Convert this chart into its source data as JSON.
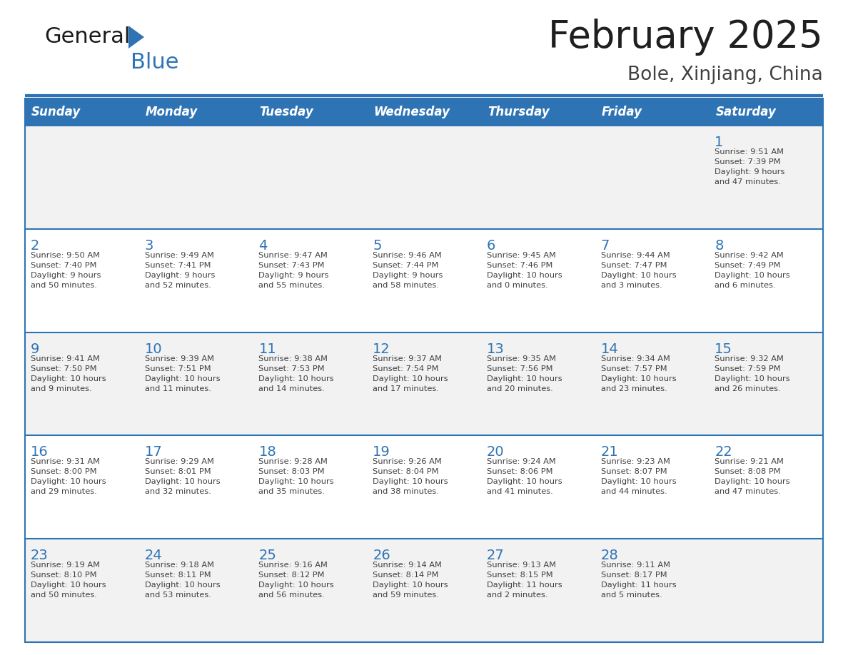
{
  "title": "February 2025",
  "subtitle": "Bole, Xinjiang, China",
  "header_bg_color": "#2E74B5",
  "header_text_color": "#FFFFFF",
  "row_bg_color_odd": "#F2F2F2",
  "row_bg_color_even": "#FFFFFF",
  "border_color": "#2E74B5",
  "day_headers": [
    "Sunday",
    "Monday",
    "Tuesday",
    "Wednesday",
    "Thursday",
    "Friday",
    "Saturday"
  ],
  "title_color": "#1F1F1F",
  "subtitle_color": "#404040",
  "cell_text_color": "#404040",
  "day_num_color": "#2E74B5",
  "logo_general_color": "#1A1A1A",
  "logo_blue_color": "#2E74B5",
  "logo_triangle_color": "#2E74B5",
  "calendar_data": [
    [
      {
        "day": null,
        "info": null
      },
      {
        "day": null,
        "info": null
      },
      {
        "day": null,
        "info": null
      },
      {
        "day": null,
        "info": null
      },
      {
        "day": null,
        "info": null
      },
      {
        "day": null,
        "info": null
      },
      {
        "day": 1,
        "info": "Sunrise: 9:51 AM\nSunset: 7:39 PM\nDaylight: 9 hours\nand 47 minutes."
      }
    ],
    [
      {
        "day": 2,
        "info": "Sunrise: 9:50 AM\nSunset: 7:40 PM\nDaylight: 9 hours\nand 50 minutes."
      },
      {
        "day": 3,
        "info": "Sunrise: 9:49 AM\nSunset: 7:41 PM\nDaylight: 9 hours\nand 52 minutes."
      },
      {
        "day": 4,
        "info": "Sunrise: 9:47 AM\nSunset: 7:43 PM\nDaylight: 9 hours\nand 55 minutes."
      },
      {
        "day": 5,
        "info": "Sunrise: 9:46 AM\nSunset: 7:44 PM\nDaylight: 9 hours\nand 58 minutes."
      },
      {
        "day": 6,
        "info": "Sunrise: 9:45 AM\nSunset: 7:46 PM\nDaylight: 10 hours\nand 0 minutes."
      },
      {
        "day": 7,
        "info": "Sunrise: 9:44 AM\nSunset: 7:47 PM\nDaylight: 10 hours\nand 3 minutes."
      },
      {
        "day": 8,
        "info": "Sunrise: 9:42 AM\nSunset: 7:49 PM\nDaylight: 10 hours\nand 6 minutes."
      }
    ],
    [
      {
        "day": 9,
        "info": "Sunrise: 9:41 AM\nSunset: 7:50 PM\nDaylight: 10 hours\nand 9 minutes."
      },
      {
        "day": 10,
        "info": "Sunrise: 9:39 AM\nSunset: 7:51 PM\nDaylight: 10 hours\nand 11 minutes."
      },
      {
        "day": 11,
        "info": "Sunrise: 9:38 AM\nSunset: 7:53 PM\nDaylight: 10 hours\nand 14 minutes."
      },
      {
        "day": 12,
        "info": "Sunrise: 9:37 AM\nSunset: 7:54 PM\nDaylight: 10 hours\nand 17 minutes."
      },
      {
        "day": 13,
        "info": "Sunrise: 9:35 AM\nSunset: 7:56 PM\nDaylight: 10 hours\nand 20 minutes."
      },
      {
        "day": 14,
        "info": "Sunrise: 9:34 AM\nSunset: 7:57 PM\nDaylight: 10 hours\nand 23 minutes."
      },
      {
        "day": 15,
        "info": "Sunrise: 9:32 AM\nSunset: 7:59 PM\nDaylight: 10 hours\nand 26 minutes."
      }
    ],
    [
      {
        "day": 16,
        "info": "Sunrise: 9:31 AM\nSunset: 8:00 PM\nDaylight: 10 hours\nand 29 minutes."
      },
      {
        "day": 17,
        "info": "Sunrise: 9:29 AM\nSunset: 8:01 PM\nDaylight: 10 hours\nand 32 minutes."
      },
      {
        "day": 18,
        "info": "Sunrise: 9:28 AM\nSunset: 8:03 PM\nDaylight: 10 hours\nand 35 minutes."
      },
      {
        "day": 19,
        "info": "Sunrise: 9:26 AM\nSunset: 8:04 PM\nDaylight: 10 hours\nand 38 minutes."
      },
      {
        "day": 20,
        "info": "Sunrise: 9:24 AM\nSunset: 8:06 PM\nDaylight: 10 hours\nand 41 minutes."
      },
      {
        "day": 21,
        "info": "Sunrise: 9:23 AM\nSunset: 8:07 PM\nDaylight: 10 hours\nand 44 minutes."
      },
      {
        "day": 22,
        "info": "Sunrise: 9:21 AM\nSunset: 8:08 PM\nDaylight: 10 hours\nand 47 minutes."
      }
    ],
    [
      {
        "day": 23,
        "info": "Sunrise: 9:19 AM\nSunset: 8:10 PM\nDaylight: 10 hours\nand 50 minutes."
      },
      {
        "day": 24,
        "info": "Sunrise: 9:18 AM\nSunset: 8:11 PM\nDaylight: 10 hours\nand 53 minutes."
      },
      {
        "day": 25,
        "info": "Sunrise: 9:16 AM\nSunset: 8:12 PM\nDaylight: 10 hours\nand 56 minutes."
      },
      {
        "day": 26,
        "info": "Sunrise: 9:14 AM\nSunset: 8:14 PM\nDaylight: 10 hours\nand 59 minutes."
      },
      {
        "day": 27,
        "info": "Sunrise: 9:13 AM\nSunset: 8:15 PM\nDaylight: 11 hours\nand 2 minutes."
      },
      {
        "day": 28,
        "info": "Sunrise: 9:11 AM\nSunset: 8:17 PM\nDaylight: 11 hours\nand 5 minutes."
      },
      {
        "day": null,
        "info": null
      }
    ]
  ]
}
